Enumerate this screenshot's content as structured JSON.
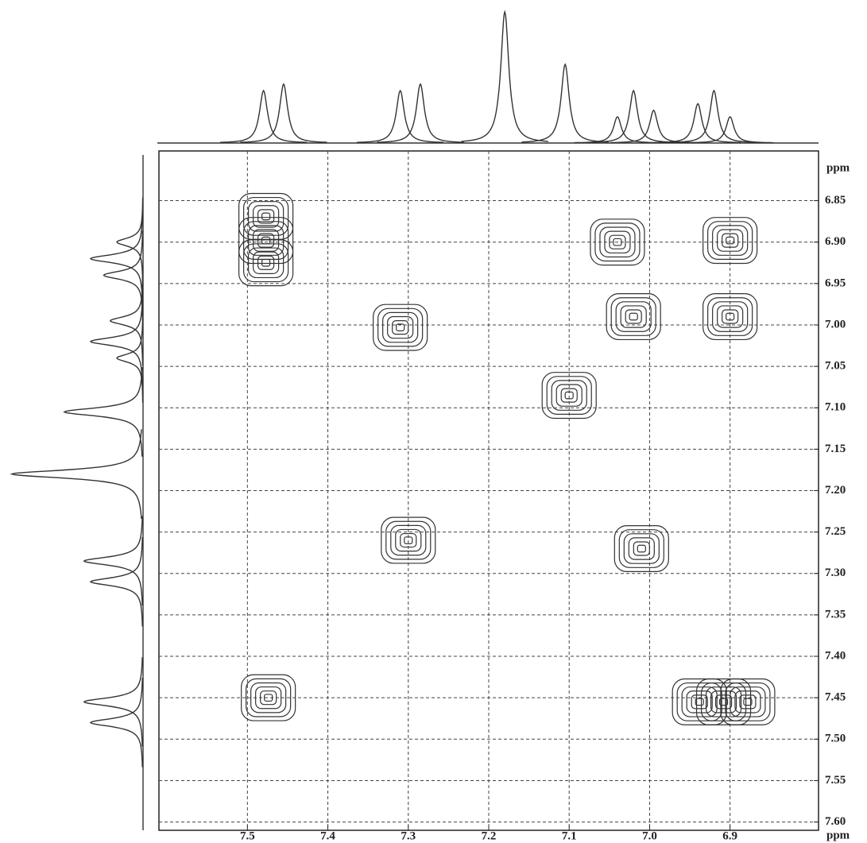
{
  "chart_data": {
    "type": "contour",
    "xlabel": "ppm",
    "ylabel": "ppm",
    "xlim": [
      7.61,
      6.79
    ],
    "ylim": [
      6.79,
      7.61
    ],
    "xticks": [
      7.5,
      7.4,
      7.3,
      7.2,
      7.1,
      {
        "value": 7,
        "label": "7.0"
      },
      6.9
    ],
    "yticks": [
      6.85,
      {
        "value": 6.9,
        "label": "6.90"
      },
      6.95,
      {
        "value": 7,
        "label": "7.00"
      },
      7.05,
      {
        "value": 7.1,
        "label": "7.10"
      },
      7.15,
      {
        "value": 7.2,
        "label": "7.20"
      },
      7.25,
      {
        "value": 7.3,
        "label": "7.30"
      },
      7.35,
      {
        "value": 7.4,
        "label": "7.40"
      },
      7.45,
      {
        "value": 7.5,
        "label": "7.50"
      },
      7.55,
      {
        "value": 7.6,
        "label": "7.60"
      }
    ],
    "grid": true,
    "color": "#333333",
    "peaks": {
      "x": [
        7.477,
        7.477,
        7.477,
        7.31,
        6.9,
        7.04,
        7.02,
        6.9,
        7.1,
        7.3,
        7.01,
        7.474,
        6.938,
        6.908,
        6.878
      ],
      "y": [
        6.869,
        6.898,
        6.925,
        7.003,
        6.898,
        6.9,
        6.99,
        6.99,
        7.085,
        7.26,
        7.27,
        7.45,
        7.455,
        7.455,
        7.455
      ]
    },
    "projection": {
      "shift": [
        7.48,
        7.455,
        7.31,
        7.285,
        7.18,
        7.105,
        7.04,
        7.02,
        6.995,
        6.94,
        6.92,
        6.9
      ],
      "intensity": [
        0.4,
        0.45,
        0.4,
        0.45,
        1.0,
        0.6,
        0.2,
        0.4,
        0.25,
        0.3,
        0.4,
        0.2
      ]
    }
  }
}
